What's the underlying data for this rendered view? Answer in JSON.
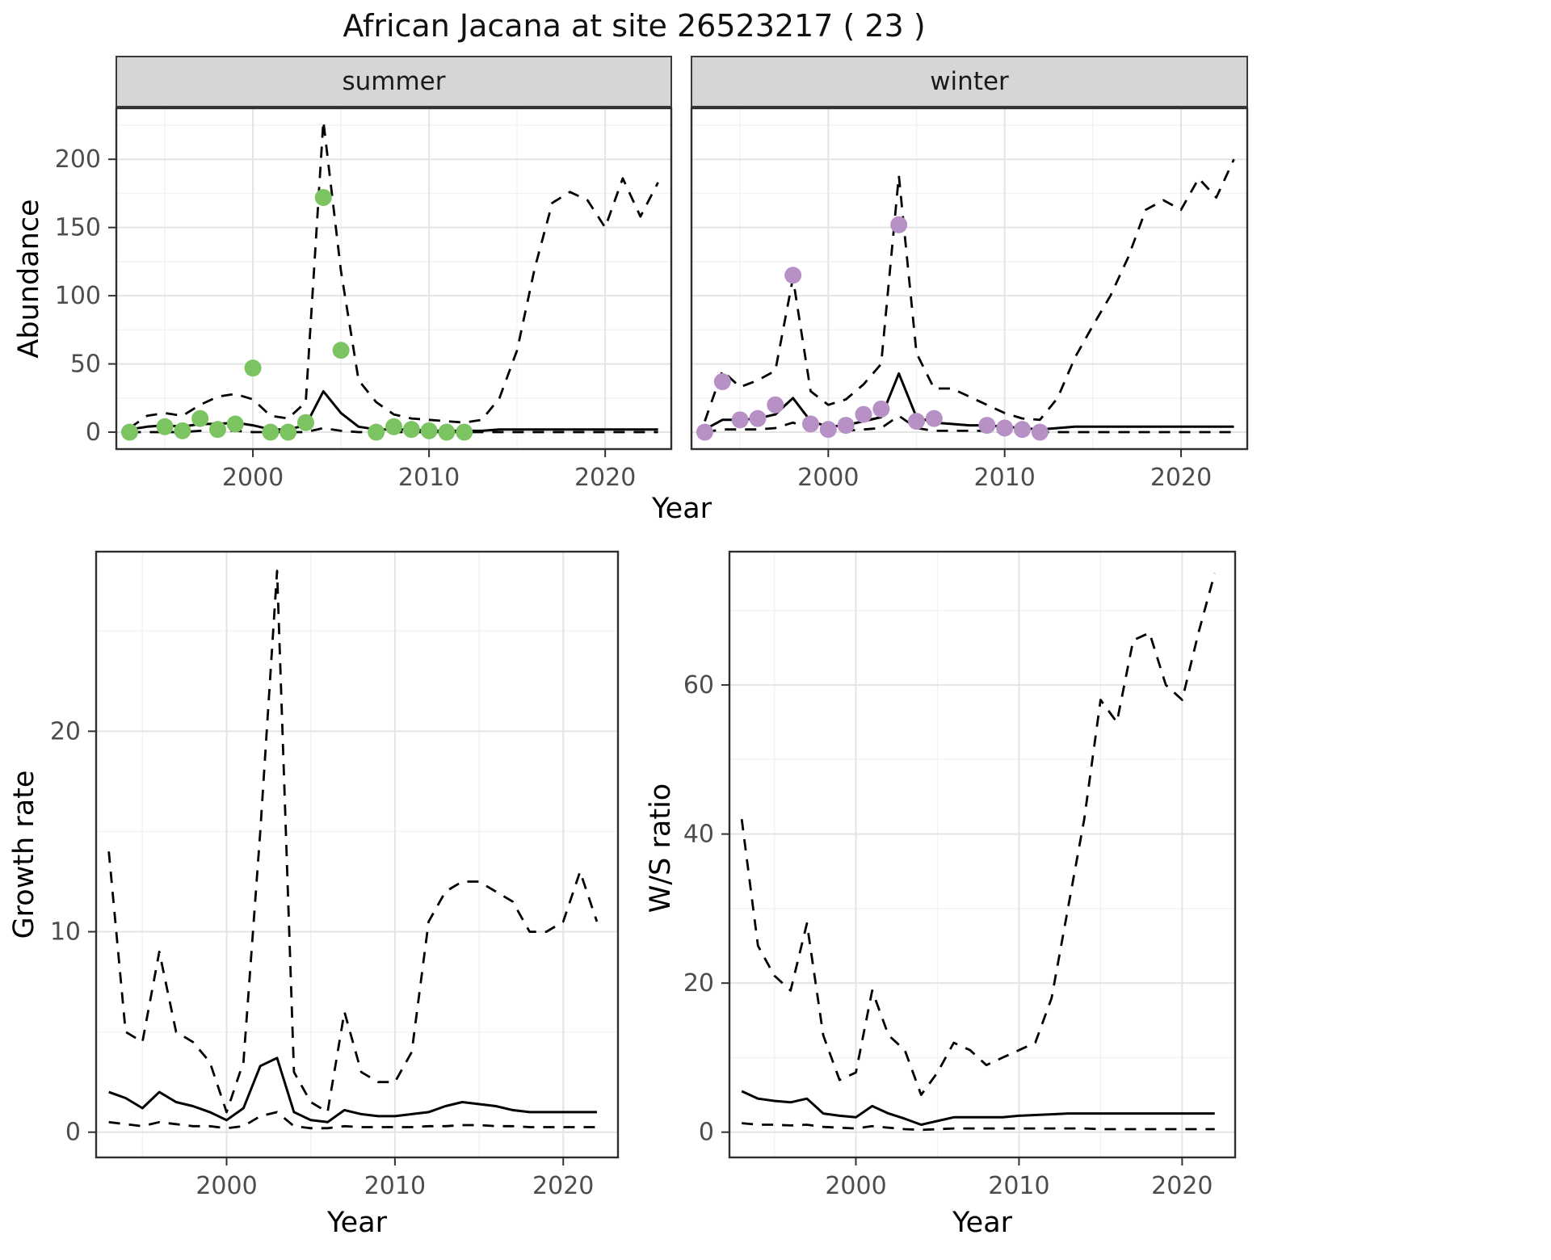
{
  "title": "African Jacana at site 26523217 ( 23 )",
  "colors": {
    "summer_points": "#7cc462",
    "winter_points": "#b790c6",
    "line": "#000000",
    "grid_major": "#e4e4e4",
    "grid_minor": "#f2f2f2",
    "panel_border": "#2f2f2f",
    "strip_background": "#d6d6d6",
    "tick_label": "#4d4d4d"
  },
  "chart_data": [
    {
      "id": "abundance-summer",
      "type": "line",
      "facet": "summer",
      "xlabel": "Year",
      "ylabel": "Abundance",
      "xlim": [
        1992.2,
        2023.8
      ],
      "ylim": [
        -13,
        238
      ],
      "xticks": [
        2000,
        2010,
        2020
      ],
      "yticks": [
        0,
        50,
        100,
        150,
        200
      ],
      "grid": true,
      "years": [
        1993,
        1994,
        1995,
        1996,
        1997,
        1998,
        1999,
        2000,
        2001,
        2002,
        2003,
        2004,
        2005,
        2006,
        2007,
        2008,
        2009,
        2010,
        2011,
        2012,
        2013,
        2014,
        2015,
        2016,
        2017,
        2018,
        2019,
        2020,
        2021,
        2022,
        2023
      ],
      "series": [
        {
          "name": "upper-ci",
          "style": "dashed",
          "values": [
            3,
            12,
            14,
            12,
            20,
            26,
            28,
            24,
            12,
            10,
            22,
            228,
            118,
            38,
            22,
            13,
            10,
            9,
            8,
            7,
            9,
            25,
            60,
            120,
            168,
            176,
            170,
            150,
            186,
            158,
            183
          ]
        },
        {
          "name": "lower-ci",
          "style": "dashed",
          "values": [
            0,
            0,
            0,
            0,
            1,
            1,
            1,
            0,
            0,
            0,
            0,
            3,
            1,
            0,
            0,
            0,
            0,
            0,
            0,
            0,
            0,
            0,
            0,
            0,
            0,
            0,
            0,
            0,
            0,
            0,
            0
          ]
        },
        {
          "name": "median",
          "style": "solid",
          "values": [
            2,
            4,
            5,
            4,
            6,
            6,
            7,
            5,
            2,
            2,
            5,
            30,
            14,
            4,
            2,
            2,
            2,
            1,
            1,
            1,
            1,
            2,
            2,
            2,
            2,
            2,
            2,
            2,
            2,
            2,
            2
          ]
        },
        {
          "name": "observed-counts",
          "style": "points",
          "color": "#7cc462",
          "years": [
            1993,
            1995,
            1996,
            1997,
            1998,
            1999,
            2000,
            2001,
            2002,
            2003,
            2004,
            2005,
            2007,
            2008,
            2009,
            2010,
            2011,
            2012
          ],
          "values": [
            0,
            4,
            1,
            10,
            2,
            6,
            47,
            0,
            0,
            7,
            172,
            60,
            0,
            4,
            2,
            1,
            0,
            0
          ]
        }
      ]
    },
    {
      "id": "abundance-winter",
      "type": "line",
      "facet": "winter",
      "xlabel": "Year",
      "ylabel": "Abundance",
      "xlim": [
        1992.2,
        2023.8
      ],
      "ylim": [
        -13,
        238
      ],
      "xticks": [
        2000,
        2010,
        2020
      ],
      "yticks": [
        0,
        50,
        100,
        150,
        200
      ],
      "grid": true,
      "years": [
        1993,
        1994,
        1995,
        1996,
        1997,
        1998,
        1999,
        2000,
        2001,
        2002,
        2003,
        2004,
        2005,
        2006,
        2007,
        2008,
        2009,
        2010,
        2011,
        2012,
        2013,
        2014,
        2015,
        2016,
        2017,
        2018,
        2019,
        2020,
        2021,
        2022,
        2023
      ],
      "series": [
        {
          "name": "upper-ci",
          "style": "dashed",
          "values": [
            8,
            45,
            33,
            38,
            45,
            113,
            30,
            20,
            24,
            35,
            50,
            188,
            58,
            32,
            32,
            26,
            20,
            14,
            10,
            9,
            25,
            55,
            78,
            100,
            128,
            163,
            170,
            163,
            186,
            172,
            200
          ]
        },
        {
          "name": "lower-ci",
          "style": "dashed",
          "values": [
            0,
            2,
            2,
            2,
            3,
            7,
            2,
            1,
            1,
            2,
            3,
            12,
            3,
            1,
            1,
            1,
            1,
            0,
            0,
            0,
            0,
            0,
            0,
            0,
            0,
            0,
            0,
            0,
            0,
            0,
            0
          ]
        },
        {
          "name": "median",
          "style": "solid",
          "values": [
            2,
            9,
            9,
            10,
            13,
            25,
            8,
            4,
            5,
            8,
            11,
            43,
            11,
            7,
            6,
            5,
            5,
            4,
            3,
            2,
            3,
            4,
            4,
            4,
            4,
            4,
            4,
            4,
            4,
            4,
            4
          ]
        },
        {
          "name": "observed-counts",
          "style": "points",
          "color": "#b790c6",
          "years": [
            1993,
            1994,
            1995,
            1996,
            1997,
            1998,
            1999,
            2000,
            2001,
            2002,
            2003,
            2004,
            2005,
            2006,
            2009,
            2010,
            2011,
            2012
          ],
          "values": [
            0,
            37,
            9,
            10,
            20,
            115,
            6,
            2,
            5,
            13,
            17,
            152,
            8,
            10,
            5,
            3,
            2,
            0
          ]
        }
      ]
    },
    {
      "id": "growth-rate",
      "type": "line",
      "xlabel": "Year",
      "ylabel": "Growth rate",
      "xlim": [
        1992.2,
        2023.3
      ],
      "ylim": [
        -1.3,
        29
      ],
      "xticks": [
        2000,
        2010,
        2020
      ],
      "yticks": [
        0,
        10,
        20
      ],
      "grid": true,
      "years": [
        1993,
        1994,
        1995,
        1996,
        1997,
        1998,
        1999,
        2000,
        2001,
        2002,
        2003,
        2004,
        2005,
        2006,
        2007,
        2008,
        2009,
        2010,
        2011,
        2012,
        2013,
        2014,
        2015,
        2016,
        2017,
        2018,
        2019,
        2020,
        2021,
        2022
      ],
      "series": [
        {
          "name": "upper-ci",
          "style": "dashed",
          "values": [
            14,
            5,
            4.5,
            9,
            5,
            4.5,
            3.5,
            1,
            3.5,
            15,
            28,
            3,
            1.5,
            1,
            6,
            3,
            2.5,
            2.5,
            4,
            10.5,
            12,
            12.5,
            12.5,
            12,
            11.5,
            10,
            10,
            10.5,
            13,
            10.5
          ]
        },
        {
          "name": "lower-ci",
          "style": "dashed",
          "values": [
            0.5,
            0.4,
            0.3,
            0.5,
            0.4,
            0.3,
            0.3,
            0.2,
            0.3,
            0.8,
            1,
            0.3,
            0.2,
            0.2,
            0.3,
            0.25,
            0.25,
            0.25,
            0.25,
            0.3,
            0.3,
            0.35,
            0.35,
            0.3,
            0.3,
            0.25,
            0.25,
            0.25,
            0.25,
            0.25
          ]
        },
        {
          "name": "median",
          "style": "solid",
          "values": [
            2,
            1.7,
            1.2,
            2,
            1.5,
            1.3,
            1,
            0.6,
            1.2,
            3.3,
            3.7,
            1,
            0.6,
            0.5,
            1.1,
            0.9,
            0.8,
            0.8,
            0.9,
            1,
            1.3,
            1.5,
            1.4,
            1.3,
            1.1,
            1,
            1,
            1,
            1,
            1
          ]
        }
      ]
    },
    {
      "id": "ws-ratio",
      "type": "line",
      "xlabel": "Year",
      "ylabel": "W/S ratio",
      "xlim": [
        1992.2,
        2023.3
      ],
      "ylim": [
        -3.5,
        78
      ],
      "xticks": [
        2000,
        2010,
        2020
      ],
      "yticks": [
        0,
        20,
        40,
        60
      ],
      "grid": true,
      "years": [
        1993,
        1994,
        1995,
        1996,
        1997,
        1998,
        1999,
        2000,
        2001,
        2002,
        2003,
        2004,
        2005,
        2006,
        2007,
        2008,
        2009,
        2010,
        2011,
        2012,
        2013,
        2014,
        2015,
        2016,
        2017,
        2018,
        2019,
        2020,
        2021,
        2022
      ],
      "series": [
        {
          "name": "upper-ci",
          "style": "dashed",
          "values": [
            42,
            25,
            21,
            19,
            28,
            13,
            7,
            8,
            19,
            13,
            11,
            5,
            8,
            12,
            11,
            9,
            10,
            11,
            12,
            18,
            30,
            42,
            58,
            55,
            66,
            67,
            60,
            58,
            67,
            75
          ]
        },
        {
          "name": "lower-ci",
          "style": "dashed",
          "values": [
            1.2,
            1,
            1,
            0.9,
            1,
            0.7,
            0.6,
            0.5,
            0.8,
            0.6,
            0.4,
            0.3,
            0.4,
            0.5,
            0.5,
            0.5,
            0.5,
            0.5,
            0.5,
            0.5,
            0.5,
            0.5,
            0.4,
            0.4,
            0.4,
            0.4,
            0.4,
            0.4,
            0.4,
            0.4
          ]
        },
        {
          "name": "median",
          "style": "solid",
          "values": [
            5.5,
            4.5,
            4.2,
            4,
            4.5,
            2.5,
            2.2,
            2,
            3.5,
            2.5,
            1.8,
            1,
            1.5,
            2,
            2,
            2,
            2,
            2.2,
            2.3,
            2.4,
            2.5,
            2.5,
            2.5,
            2.5,
            2.5,
            2.5,
            2.5,
            2.5,
            2.5,
            2.5
          ]
        }
      ]
    }
  ]
}
